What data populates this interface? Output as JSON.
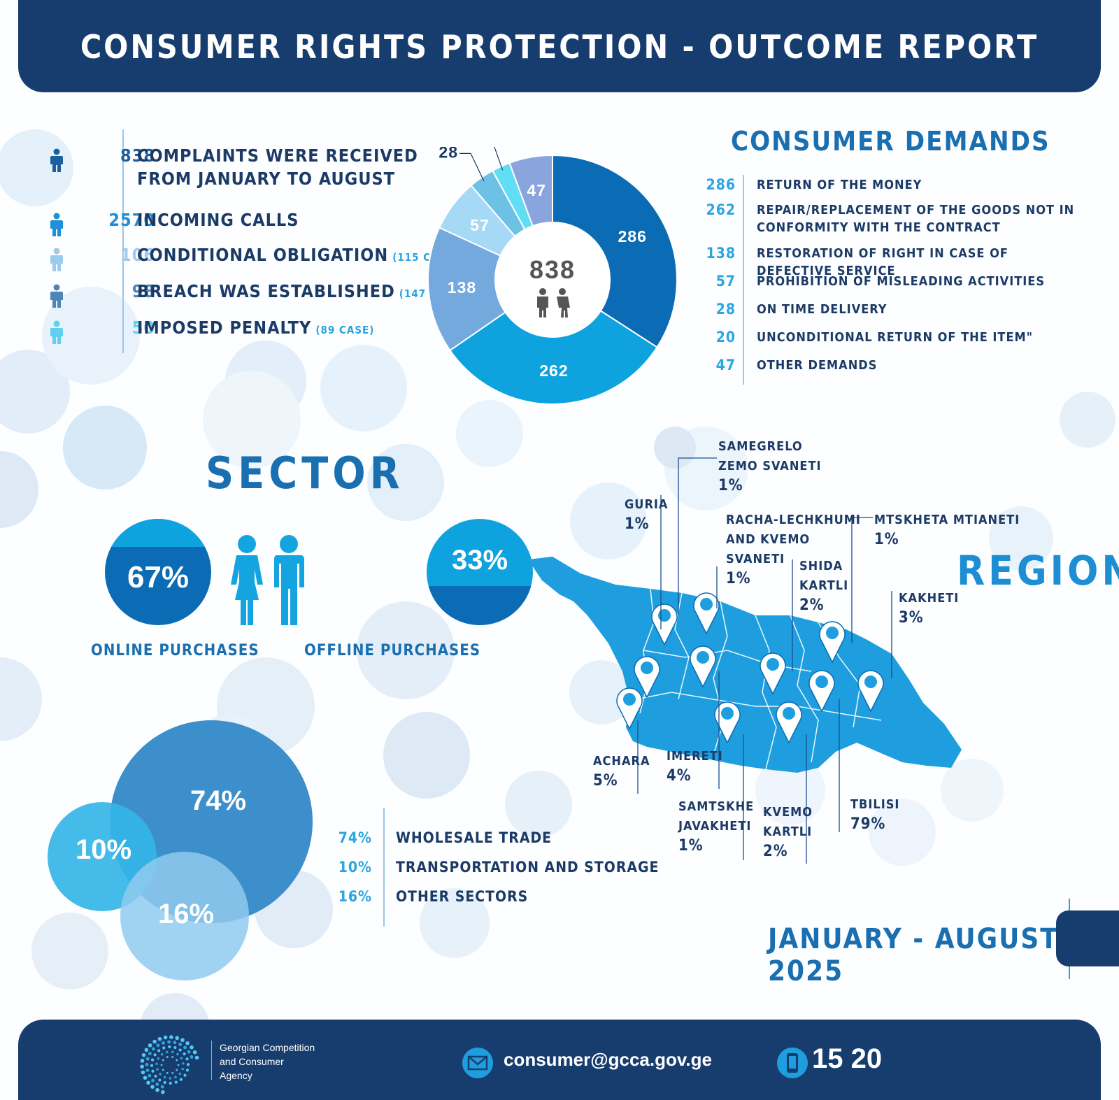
{
  "title": "CONSUMER RIGHTS PROTECTION - OUTCOME REPORT",
  "stats": [
    {
      "value": "838",
      "label": "COMPLAINTS WERE RECEIVED",
      "label2": "FROM JANUARY TO AUGUST",
      "note": "",
      "color": "#1b5f9e"
    },
    {
      "value": "2570",
      "label": "INCOMING CALLS",
      "label2": "",
      "note": "",
      "color": "#1f8fd6"
    },
    {
      "value": "106",
      "label": "CONDITIONAL OBLIGATION",
      "label2": "",
      "note": "(115 CASE)",
      "color": "#9ccbee"
    },
    {
      "value": "98",
      "label": "BREACH WAS ESTABLISHED",
      "label2": "",
      "note": "(147 CASE)",
      "color": "#4d85b7"
    },
    {
      "value": "50",
      "label": "IMPOSED PENALTY",
      "label2": "",
      "note": "(89 CASE)",
      "color": "#5fd0f2"
    }
  ],
  "demands": {
    "title": "CONSUMER DEMANDS",
    "total": "838",
    "items": [
      {
        "value": "286",
        "label": "RETURN OF THE MONEY"
      },
      {
        "value": "262",
        "label": "REPAIR/REPLACEMENT OF THE GOODS NOT IN CONFORMITY WITH THE CONTRACT"
      },
      {
        "value": "138",
        "label": "RESTORATION OF RIGHT IN CASE OF DEFECTIVE SERVICE"
      },
      {
        "value": "57",
        "label": "PROHIBITION OF MISLEADING ACTIVITIES"
      },
      {
        "value": "28",
        "label": "ON TIME DELIVERY"
      },
      {
        "value": "20",
        "label": "UNCONDITIONAL RETURN OF THE ITEM\""
      },
      {
        "value": "47",
        "label": "OTHER DEMANDS"
      }
    ]
  },
  "chart_data": [
    {
      "type": "pie",
      "categories": [
        "RETURN OF THE MONEY",
        "REPAIR/REPLACEMENT OF THE GOODS NOT IN CONFORMITY WITH THE CONTRACT",
        "RESTORATION OF RIGHT IN CASE OF DEFECTIVE SERVICE",
        "PROHIBITION OF MISLEADING ACTIVITIES",
        "ON TIME DELIVERY",
        "UNCONDITIONAL RETURN OF THE ITEM\"",
        "OTHER DEMANDS"
      ],
      "values": [
        286,
        262,
        138,
        57,
        28,
        20,
        47
      ],
      "colors": [
        "#0b6cb5",
        "#0ea3df",
        "#73a9dc",
        "#a6d9f6",
        "#6cc1e4",
        "#62def4",
        "#8aa4dd"
      ],
      "center_label": "838"
    },
    {
      "type": "pie",
      "categories": [
        "ONLINE PURCHASES",
        "OFFLINE PURCHASES"
      ],
      "values": [
        67,
        33
      ],
      "labels": [
        "67%",
        "33%"
      ]
    },
    {
      "type": "pie",
      "categories": [
        "WHOLESALE TRADE",
        "TRANSPORTATION AND STORAGE",
        "OTHER SECTORS"
      ],
      "values": [
        74,
        10,
        16
      ],
      "labels": [
        "74%",
        "10%",
        "16%"
      ],
      "colors": [
        "#3c8fca",
        "#35b5e7",
        "#8fcaef"
      ]
    },
    {
      "type": "table",
      "categories": [
        "SAMEGRELO ZEMO SVANETI",
        "GURIA",
        "RACHA-LECHKHUMI AND KVEMO SVANETI",
        "MTSKHETA MTIANETI",
        "SHIDA KARTLI",
        "KAKHETI",
        "ACHARA",
        "IMERETI",
        "SAMTSKHE JAVAKHETI",
        "KVEMO KARTLI",
        "TBILISI"
      ],
      "values": [
        1,
        1,
        1,
        1,
        2,
        3,
        5,
        4,
        1,
        2,
        79
      ]
    }
  ],
  "sector": {
    "title": "SECTOR",
    "online": {
      "pct": "67%",
      "label": "ONLINE PURCHASES"
    },
    "offline": {
      "pct": "33%",
      "label": "OFFLINE PURCHASES"
    },
    "bubbles": {
      "a": "74%",
      "b": "10%",
      "c": "16%"
    },
    "list": [
      {
        "pct": "74%",
        "label": "WHOLESALE TRADE"
      },
      {
        "pct": "10%",
        "label": "TRANSPORTATION AND STORAGE"
      },
      {
        "pct": "16%",
        "label": "OTHER SECTORS"
      }
    ]
  },
  "region": {
    "title": "REGION",
    "items": [
      {
        "name": "SAMEGRELO",
        "name2": "ZEMO SVANETI",
        "name3": "",
        "pct": "1%"
      },
      {
        "name": "GURIA",
        "name2": "",
        "name3": "",
        "pct": "1%"
      },
      {
        "name": "RACHA-LECHKHUMI",
        "name2": "AND KVEMO",
        "name3": "SVANETI",
        "pct": "1%"
      },
      {
        "name": "MTSKHETA MTIANETI",
        "name2": "",
        "name3": "",
        "pct": "1%"
      },
      {
        "name": "SHIDA",
        "name2": "KARTLI",
        "name3": "",
        "pct": "2%"
      },
      {
        "name": "KAKHETI",
        "name2": "",
        "name3": "",
        "pct": "3%"
      },
      {
        "name": "ACHARA",
        "name2": "",
        "name3": "",
        "pct": "5%"
      },
      {
        "name": "IMERETI",
        "name2": "",
        "name3": "",
        "pct": "4%"
      },
      {
        "name": "SAMTSKHE",
        "name2": "JAVAKHETI",
        "name3": "",
        "pct": "1%"
      },
      {
        "name": "KVEMO",
        "name2": "KARTLI",
        "name3": "",
        "pct": "2%"
      },
      {
        "name": "TBILISI",
        "name2": "",
        "name3": "",
        "pct": "79%"
      }
    ]
  },
  "period": "JANUARY - AUGUST 2025",
  "footer": {
    "agency1": "Georgian Competition",
    "agency2": "and Consumer",
    "agency3": "Agency",
    "email": "consumer@gcca.gov.ge",
    "phone": "15 20",
    "icons": [
      "gcca-logo-icon",
      "mail-icon",
      "phone-icon"
    ]
  },
  "colors": {
    "navy": "#173d6f",
    "accent": "#1a6fb1",
    "light": "#2aa6df",
    "map": "#1e9ede"
  }
}
